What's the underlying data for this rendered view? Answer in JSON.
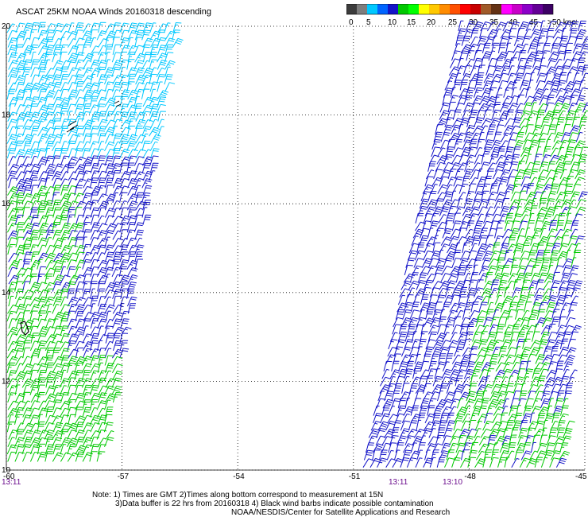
{
  "title": "ASCAT 25KM NOAA Winds 20160318 descending",
  "colorbar": {
    "labels": [
      "0",
      "5",
      "10",
      "15",
      "20",
      "25",
      "30",
      "35",
      "40",
      "45",
      ">50 knots"
    ],
    "colors": [
      "#3c3c3c",
      "#7d7d7d",
      "#00c8ff",
      "#0064ff",
      "#1414c8",
      "#00c800",
      "#00ff00",
      "#ffff00",
      "#ffc800",
      "#ff8c00",
      "#ff5000",
      "#ff0000",
      "#c80000",
      "#a05a28",
      "#643214",
      "#ff00ff",
      "#c800c8",
      "#8c00c8",
      "#640096",
      "#3c0064"
    ]
  },
  "map": {
    "lon_range": [
      -60,
      -45
    ],
    "lat_range": [
      10,
      20
    ],
    "lon_ticks": [
      "-60",
      "-57",
      "-54",
      "-51",
      "-48",
      "-45"
    ],
    "lat_ticks": [
      "20",
      "18",
      "16",
      "14",
      "12",
      "10"
    ],
    "gridline_style": "dotted",
    "swaths": [
      {
        "name": "west",
        "pass_time_label": "13:11",
        "color_by_lat": [
          {
            "from": 17.0,
            "color": "#00c8ff"
          },
          {
            "from": 14.0,
            "color": "#1414c8"
          },
          {
            "from": 10.0,
            "color": "#00c800"
          }
        ]
      },
      {
        "name": "east",
        "pass_time_labels": [
          "13:11",
          "13:10"
        ],
        "color_mix": [
          "#1414c8",
          "#00c800"
        ]
      }
    ],
    "time_label_color": "#6a0a8c"
  },
  "notes": [
    "Note: 1) Times are GMT 2)Times along bottom correspond to measurement at 15N",
    "3)Data buffer is 22 hrs from 20160318 4) Black wind barbs indicate possible contamination",
    "NOAA/NESDIS/Center for Satellite Applications and Research"
  ]
}
